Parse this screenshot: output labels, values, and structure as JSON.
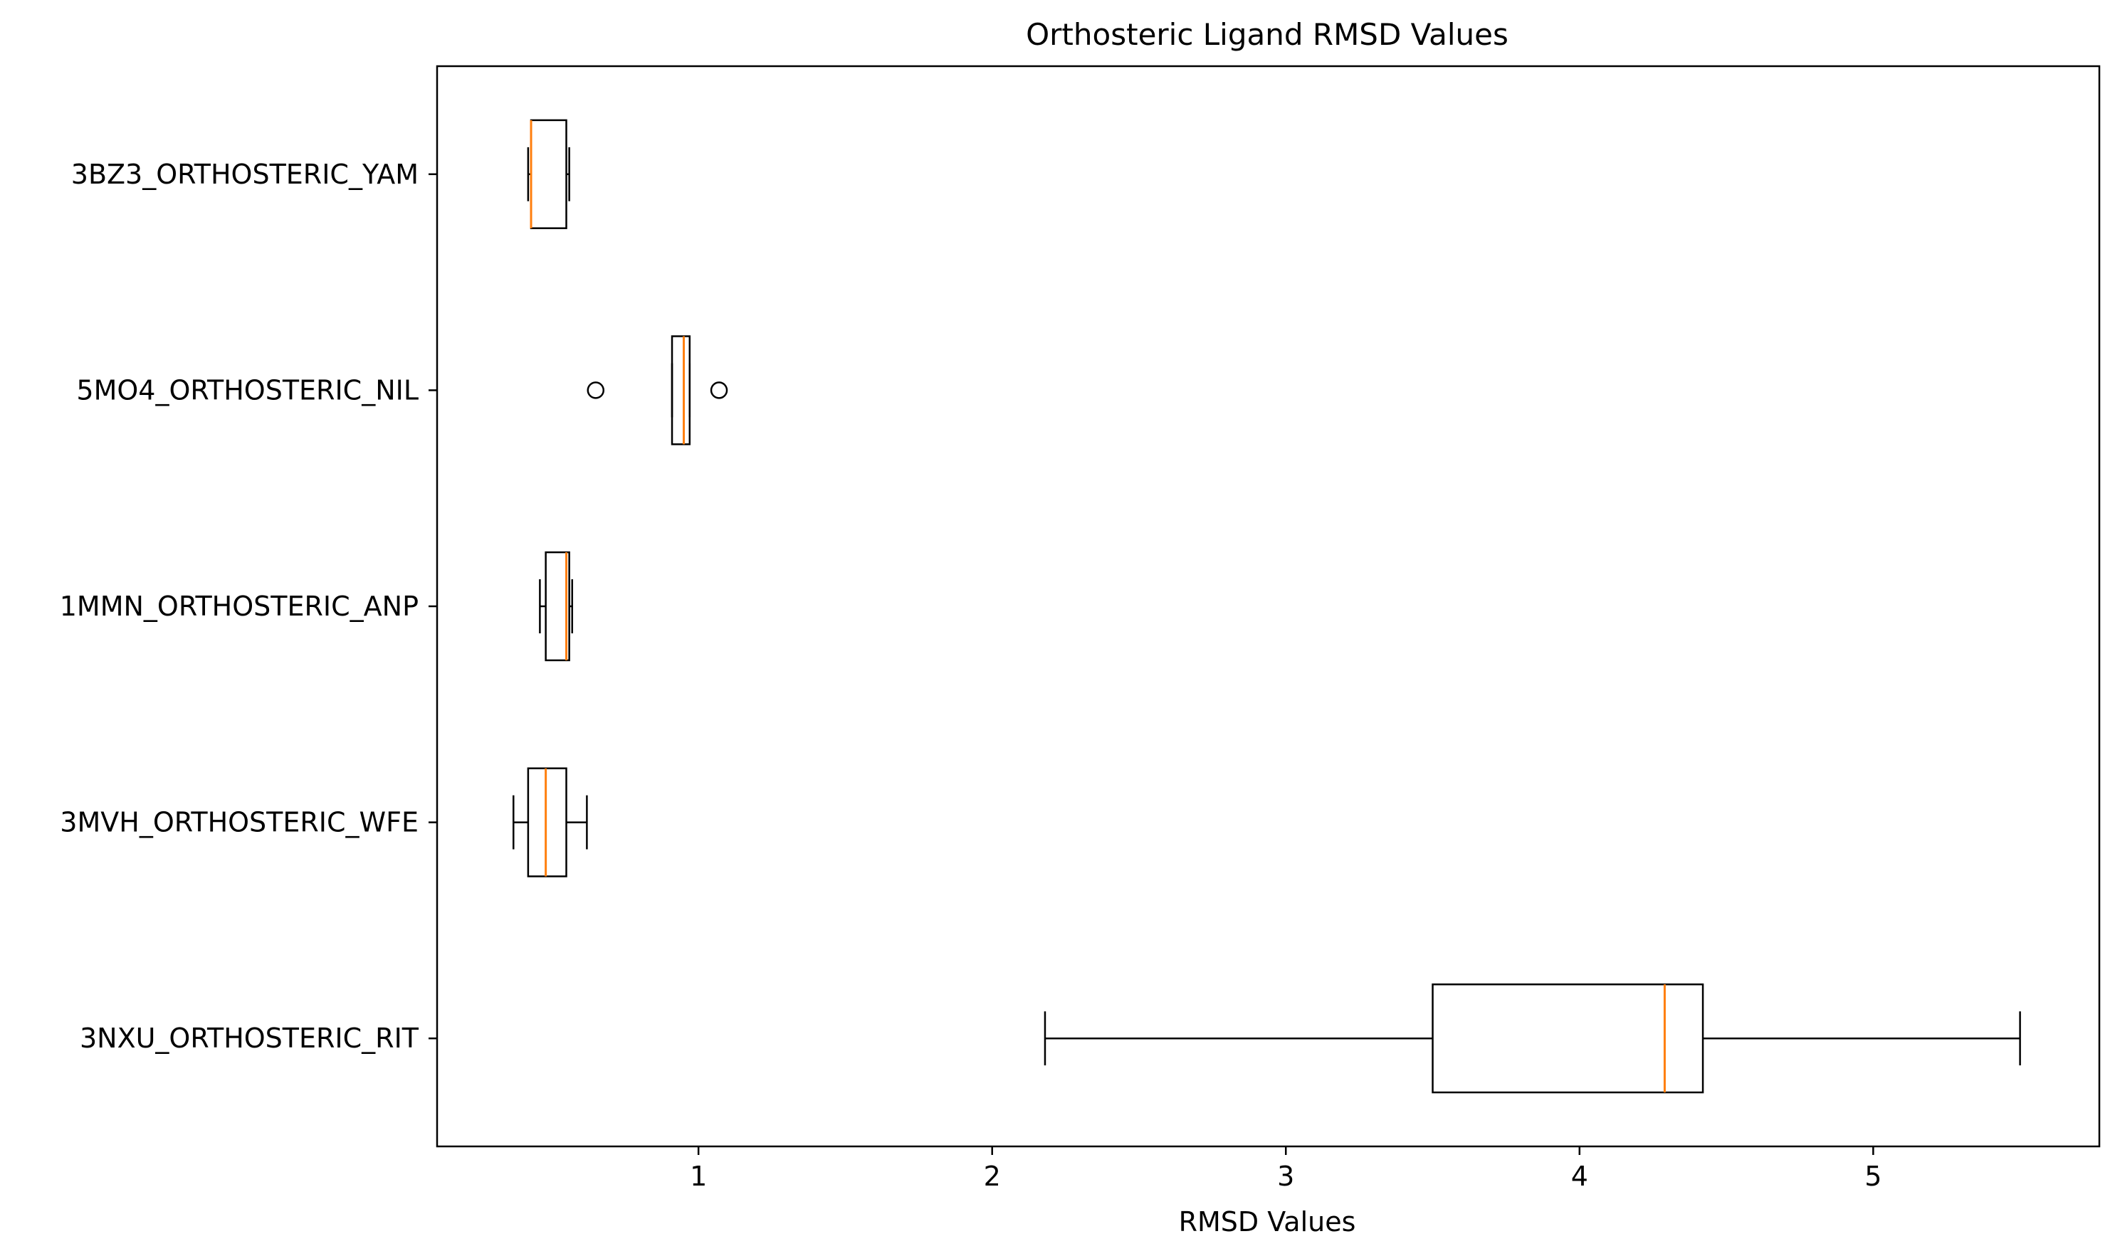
{
  "chart_data": {
    "type": "boxplot",
    "orientation": "horizontal",
    "title": "Orthosteric Ligand RMSD Values",
    "xlabel": "RMSD Values",
    "ylabel": "",
    "xlim": [
      0.11,
      5.77
    ],
    "xticks": [
      1,
      2,
      3,
      4,
      5
    ],
    "xtick_labels": [
      "1",
      "2",
      "3",
      "4",
      "5"
    ],
    "grid": false,
    "colors": {
      "box": "#000000",
      "median": "#ff7f0e",
      "frame": "#000000"
    },
    "boxes": [
      {
        "label": "3BZ3_ORTHOSTERIC_YAM",
        "whisker_low": 0.42,
        "q1": 0.43,
        "median": 0.43,
        "q3": 0.55,
        "whisker_high": 0.56,
        "outliers": []
      },
      {
        "label": "5MO4_ORTHOSTERIC_NIL",
        "whisker_low": 0.91,
        "q1": 0.91,
        "median": 0.95,
        "q3": 0.97,
        "whisker_high": 0.97,
        "outliers": [
          0.65,
          1.07
        ]
      },
      {
        "label": "1MMN_ORTHOSTERIC_ANP",
        "whisker_low": 0.46,
        "q1": 0.48,
        "median": 0.55,
        "q3": 0.56,
        "whisker_high": 0.57,
        "outliers": []
      },
      {
        "label": "3MVH_ORTHOSTERIC_WFE",
        "whisker_low": 0.37,
        "q1": 0.42,
        "median": 0.48,
        "q3": 0.55,
        "whisker_high": 0.62,
        "outliers": []
      },
      {
        "label": "3NXU_ORTHOSTERIC_RIT",
        "whisker_low": 2.18,
        "q1": 3.5,
        "median": 4.29,
        "q3": 4.42,
        "whisker_high": 5.5,
        "outliers": []
      }
    ]
  }
}
